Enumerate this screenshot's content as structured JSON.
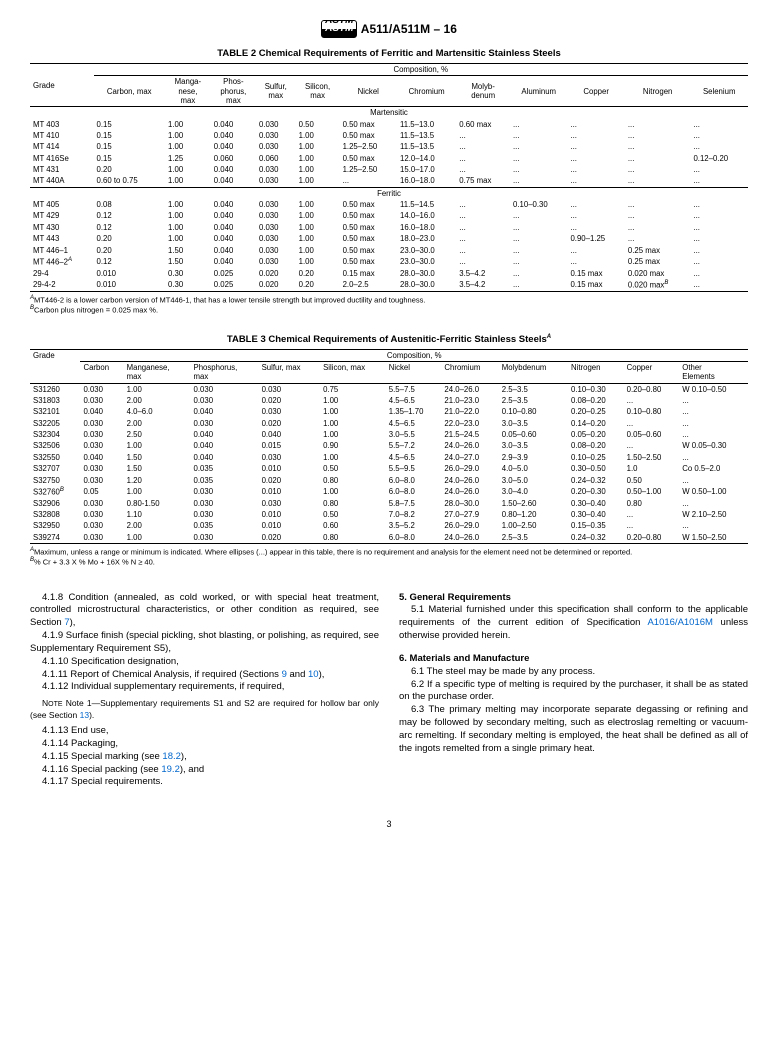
{
  "doc_id": "A511/A511M – 16",
  "logo_text": "ASTM",
  "page_number": "3",
  "table2": {
    "title": "TABLE 2 Chemical Requirements of Ferritic and Martensitic Stainless Steels",
    "comp_header": "Composition, %",
    "grade_header": "Grade",
    "columns": [
      "Carbon, max",
      "Manga-\nnese,\nmax",
      "Phos-\nphorus,\nmax",
      "Sulfur,\nmax",
      "Silicon,\nmax",
      "Nickel",
      "Chromium",
      "Molyb-\ndenum",
      "Aluminum",
      "Copper",
      "Nitrogen",
      "Selenium"
    ],
    "section1": "Martensitic",
    "rows1": [
      [
        "MT 403",
        "0.15",
        "1.00",
        "0.040",
        "0.030",
        "0.50",
        "0.50 max",
        "11.5–13.0",
        "0.60 max",
        "...",
        "...",
        "...",
        "..."
      ],
      [
        "MT 410",
        "0.15",
        "1.00",
        "0.040",
        "0.030",
        "1.00",
        "0.50 max",
        "11.5–13.5",
        "...",
        "...",
        "...",
        "...",
        "..."
      ],
      [
        "MT 414",
        "0.15",
        "1.00",
        "0.040",
        "0.030",
        "1.00",
        "1.25–2.50",
        "11.5–13.5",
        "...",
        "...",
        "...",
        "...",
        "..."
      ],
      [
        "MT 416Se",
        "0.15",
        "1.25",
        "0.060",
        "0.060",
        "1.00",
        "0.50 max",
        "12.0–14.0",
        "...",
        "...",
        "...",
        "...",
        "0.12–0.20"
      ],
      [
        "MT 431",
        "0.20",
        "1.00",
        "0.040",
        "0.030",
        "1.00",
        "1.25–2.50",
        "15.0–17.0",
        "...",
        "...",
        "...",
        "...",
        "..."
      ],
      [
        "MT 440A",
        "0.60 to 0.75",
        "1.00",
        "0.040",
        "0.030",
        "1.00",
        "...",
        "16.0–18.0",
        "0.75 max",
        "...",
        "...",
        "...",
        "..."
      ]
    ],
    "section2": "Ferritic",
    "rows2": [
      [
        "MT 405",
        "0.08",
        "1.00",
        "0.040",
        "0.030",
        "1.00",
        "0.50 max",
        "11.5–14.5",
        "...",
        "0.10–0.30",
        "...",
        "...",
        "..."
      ],
      [
        "MT 429",
        "0.12",
        "1.00",
        "0.040",
        "0.030",
        "1.00",
        "0.50 max",
        "14.0–16.0",
        "...",
        "...",
        "...",
        "...",
        "..."
      ],
      [
        "MT 430",
        "0.12",
        "1.00",
        "0.040",
        "0.030",
        "1.00",
        "0.50 max",
        "16.0–18.0",
        "...",
        "...",
        "...",
        "...",
        "..."
      ],
      [
        "MT 443",
        "0.20",
        "1.00",
        "0.040",
        "0.030",
        "1.00",
        "0.50 max",
        "18.0–23.0",
        "...",
        "...",
        "0.90–1.25",
        "...",
        "..."
      ],
      [
        "MT 446–1",
        "0.20",
        "1.50",
        "0.040",
        "0.030",
        "1.00",
        "0.50 max",
        "23.0–30.0",
        "...",
        "...",
        "...",
        "0.25 max",
        "..."
      ],
      [
        "MT 446–2",
        "0.12",
        "1.50",
        "0.040",
        "0.030",
        "1.00",
        "0.50 max",
        "23.0–30.0",
        "...",
        "...",
        "...",
        "0.25 max",
        "..."
      ],
      [
        "29-4",
        "0.010",
        "0.30",
        "0.025",
        "0.020",
        "0.20",
        "0.15 max",
        "28.0–30.0",
        "3.5–4.2",
        "...",
        "0.15 max",
        "0.020 max",
        "..."
      ],
      [
        "29-4-2",
        "0.010",
        "0.30",
        "0.025",
        "0.020",
        "0.20",
        "2.0–2.5",
        "28.0–30.0",
        "3.5–4.2",
        "...",
        "0.15 max",
        "0.020 max",
        "..."
      ]
    ],
    "footnote_a": "MT446-2 is a lower carbon version of MT446-1, that has a lower tensile strength but improved ductility and toughness.",
    "footnote_b": "Carbon plus nitrogen = 0.025 max %."
  },
  "table3": {
    "title": "TABLE 3 Chemical Requirements of Austenitic-Ferritic Stainless Steels",
    "comp_header": "Composition, %",
    "grade_header": "Grade",
    "columns": [
      "Carbon",
      "Manganese,\nmax",
      "Phosphorus,\nmax",
      "Sulfur, max",
      "Silicon, max",
      "Nickel",
      "Chromium",
      "Molybdenum",
      "Nitrogen",
      "Copper",
      "Other\nElements"
    ],
    "rows": [
      [
        "S31260",
        "0.030",
        "1.00",
        "0.030",
        "0.030",
        "0.75",
        "5.5–7.5",
        "24.0–26.0",
        "2.5–3.5",
        "0.10–0.30",
        "0.20–0.80",
        "W 0.10–0.50"
      ],
      [
        "S31803",
        "0.030",
        "2.00",
        "0.030",
        "0.020",
        "1.00",
        "4.5–6.5",
        "21.0–23.0",
        "2.5–3.5",
        "0.08–0.20",
        "...",
        "..."
      ],
      [
        "S32101",
        "0.040",
        "4.0–6.0",
        "0.040",
        "0.030",
        "1.00",
        "1.35–1.70",
        "21.0–22.0",
        "0.10–0.80",
        "0.20–0.25",
        "0.10–0.80",
        "..."
      ],
      [
        "S32205",
        "0.030",
        "2.00",
        "0.030",
        "0.020",
        "1.00",
        "4.5–6.5",
        "22.0–23.0",
        "3.0–3.5",
        "0.14–0.20",
        "...",
        "..."
      ],
      [
        "S32304",
        "0.030",
        "2.50",
        "0.040",
        "0.040",
        "1.00",
        "3.0–5.5",
        "21.5–24.5",
        "0.05–0.60",
        "0.05–0.20",
        "0.05–0.60",
        "..."
      ],
      [
        "S32506",
        "0.030",
        "1.00",
        "0.040",
        "0.015",
        "0.90",
        "5.5–7.2",
        "24.0–26.0",
        "3.0–3.5",
        "0.08–0.20",
        "...",
        "W 0.05–0.30"
      ],
      [
        "S32550",
        "0.040",
        "1.50",
        "0.040",
        "0.030",
        "1.00",
        "4.5–6.5",
        "24.0–27.0",
        "2.9–3.9",
        "0.10–0.25",
        "1.50–2.50",
        "..."
      ],
      [
        "S32707",
        "0.030",
        "1.50",
        "0.035",
        "0.010",
        "0.50",
        "5.5–9.5",
        "26.0–29.0",
        "4.0–5.0",
        "0.30–0.50",
        "1.0",
        "Co 0.5–2.0"
      ],
      [
        "S32750",
        "0.030",
        "1.20",
        "0.035",
        "0.020",
        "0.80",
        "6.0–8.0",
        "24.0–26.0",
        "3.0–5.0",
        "0.24–0.32",
        "0.50",
        "..."
      ],
      [
        "S32760",
        "0.05",
        "1.00",
        "0.030",
        "0.010",
        "1.00",
        "6.0–8.0",
        "24.0–26.0",
        "3.0–4.0",
        "0.20–0.30",
        "0.50–1.00",
        "W 0.50–1.00"
      ],
      [
        "S32906",
        "0.030",
        "0.80-1.50",
        "0.030",
        "0.030",
        "0.80",
        "5.8–7.5",
        "28.0–30.0",
        "1.50–2.60",
        "0.30–0.40",
        "0.80",
        "..."
      ],
      [
        "S32808",
        "0.030",
        "1.10",
        "0.030",
        "0.010",
        "0.50",
        "7.0–8.2",
        "27.0–27.9",
        "0.80–1.20",
        "0.30–0.40",
        "...",
        "W 2.10–2.50"
      ],
      [
        "S32950",
        "0.030",
        "2.00",
        "0.035",
        "0.010",
        "0.60",
        "3.5–5.2",
        "26.0–29.0",
        "1.00–2.50",
        "0.15–0.35",
        "...",
        "..."
      ],
      [
        "S39274",
        "0.030",
        "1.00",
        "0.030",
        "0.020",
        "0.80",
        "6.0–8.0",
        "24.0–26.0",
        "2.5–3.5",
        "0.24–0.32",
        "0.20–0.80",
        "W 1.50–2.50"
      ]
    ],
    "footnote_a": "Maximum, unless a range or minimum is indicated. Where ellipses (...) appear in this table, there is no requirement and analysis for the element need not be determined or reported.",
    "footnote_b": "% Cr + 3.3 X % Mo + 16X % N ≥ 40."
  },
  "body": {
    "p418": "4.1.8 Condition (annealed, as cold worked, or with special heat treatment, controlled microstructural characteristics, or other condition as required, see Section ",
    "p418_link": "7",
    "p418_end": "),",
    "p419": "4.1.9 Surface finish (special pickling, shot blasting, or polishing, as required, see Supplementary Requirement S5),",
    "p4110": "4.1.10 Specification designation,",
    "p4111a": "4.1.11 Report of Chemical Analysis, if required (Sections ",
    "p4111_link1": "9",
    "p4111_and": " and ",
    "p4111_link2": "10",
    "p4111_end": "),",
    "p4112": "4.1.12 Individual supplementary requirements, if required,",
    "note1": "Note 1—Supplementary requirements S1 and S2 are required for hollow bar only (see Section ",
    "note1_link": "13",
    "note1_end": ").",
    "p4113": "4.1.13 End use,",
    "p4114": "4.1.14 Packaging,",
    "p4115a": "4.1.15 Special marking (see ",
    "p4115_link": "18.2",
    "p4115_end": "),",
    "p4116a": "4.1.16 Special packing (see ",
    "p4116_link": "19.2",
    "p4116_end": "), and",
    "p4117": "4.1.17 Special requirements.",
    "h5": "5. General Requirements",
    "p51a": "5.1 Material furnished under this specification shall conform to the applicable requirements of the current edition of Specification ",
    "p51_link": "A1016/A1016M",
    "p51_end": " unless otherwise provided herein.",
    "h6": "6. Materials and Manufacture",
    "p61": "6.1 The steel may be made by any process.",
    "p62": "6.2 If a specific type of melting is required by the purchaser, it shall be as stated on the purchase order.",
    "p63": "6.3 The primary melting may incorporate separate degassing or refining and may be followed by secondary melting, such as electroslag remelting or vacuum-arc remelting. If secondary melting is employed, the heat shall be defined as all of the ingots remelted from a single primary heat."
  }
}
